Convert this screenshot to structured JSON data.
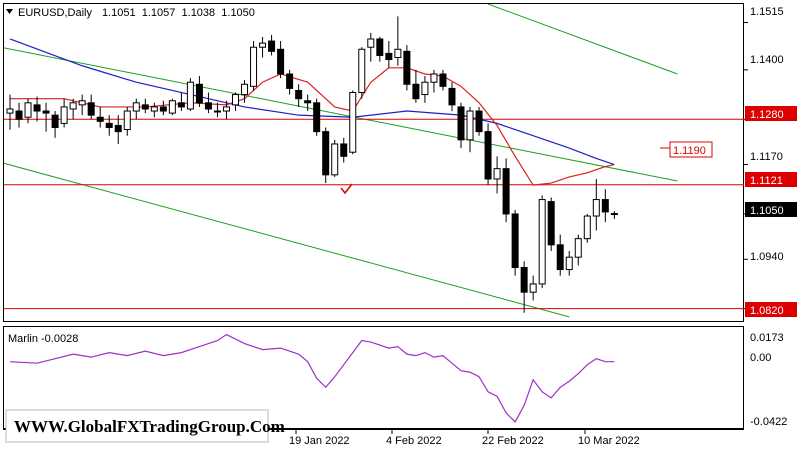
{
  "header": {
    "symbol": "EURUSD,Daily",
    "ohlc": "1.1051  1.1057  1.1038  1.1050",
    "menu_icon": "triangle-down-icon"
  },
  "indicator": {
    "label": "Marlin -0.0028",
    "ticks": [
      "0.0173",
      "0.00",
      "-0.0422"
    ]
  },
  "watermark": "WWW.GlobalFXTradingGroup.Com",
  "x_axis": {
    "ticks": [
      "19 Jan 2022",
      "4 Feb 2022",
      "22 Feb 2022",
      "10 Mar 2022"
    ]
  },
  "y_axis": {
    "ticks": [
      "1.1515",
      "1.1400",
      "1.1280",
      "1.1170",
      "1.1050",
      "1.0940",
      "1.0820"
    ]
  },
  "level_labels": {
    "level_1280": "1.1280",
    "level_1121": "1.1121",
    "level_1190": "1.1190",
    "level_0820": "1.0820",
    "current": "1.1050"
  },
  "colors": {
    "background": "#ffffff",
    "up_candle": "#ffffff",
    "down_candle": "#000000",
    "ma_fast": "#dc1e1e",
    "ma_slow": "#1e1ec8",
    "channel": "#1e9e1e",
    "levels": "#dc0000",
    "oscillator": "#9b30c8"
  },
  "chart_data": {
    "type": "candlestick",
    "symbol": "EURUSD",
    "timeframe": "Daily",
    "ylim": [
      1.079,
      1.156
    ],
    "last_ohlc": {
      "open": 1.1051,
      "high": 1.1057,
      "low": 1.1038,
      "close": 1.105
    },
    "candles": [
      [
        1.1295,
        1.134,
        1.1255,
        1.1305
      ],
      [
        1.13,
        1.132,
        1.126,
        1.128
      ],
      [
        1.1285,
        1.133,
        1.127,
        1.132
      ],
      [
        1.1315,
        1.1335,
        1.1275,
        1.13
      ],
      [
        1.13,
        1.132,
        1.125,
        1.1295
      ],
      [
        1.129,
        1.13,
        1.1235,
        1.126
      ],
      [
        1.127,
        1.133,
        1.126,
        1.131
      ],
      [
        1.1305,
        1.133,
        1.128,
        1.132
      ],
      [
        1.1315,
        1.134,
        1.129,
        1.1325
      ],
      [
        1.132,
        1.134,
        1.128,
        1.129
      ],
      [
        1.1285,
        1.131,
        1.126,
        1.1275
      ],
      [
        1.127,
        1.129,
        1.124,
        1.126
      ],
      [
        1.1265,
        1.129,
        1.122,
        1.125
      ],
      [
        1.1255,
        1.131,
        1.124,
        1.13
      ],
      [
        1.13,
        1.133,
        1.128,
        1.132
      ],
      [
        1.1315,
        1.133,
        1.1295,
        1.1305
      ],
      [
        1.13,
        1.132,
        1.1285,
        1.131
      ],
      [
        1.131,
        1.1325,
        1.129,
        1.13
      ],
      [
        1.1295,
        1.133,
        1.129,
        1.1325
      ],
      [
        1.132,
        1.1345,
        1.13,
        1.131
      ],
      [
        1.1305,
        1.138,
        1.13,
        1.137
      ],
      [
        1.1365,
        1.1385,
        1.131,
        1.132
      ],
      [
        1.132,
        1.1345,
        1.1295,
        1.1305
      ],
      [
        1.13,
        1.132,
        1.1285,
        1.13
      ],
      [
        1.13,
        1.1325,
        1.128,
        1.131
      ],
      [
        1.1315,
        1.1345,
        1.13,
        1.134
      ],
      [
        1.134,
        1.1375,
        1.132,
        1.1365
      ],
      [
        1.136,
        1.147,
        1.135,
        1.1455
      ],
      [
        1.1455,
        1.148,
        1.143,
        1.1465
      ],
      [
        1.147,
        1.1485,
        1.1435,
        1.1445
      ],
      [
        1.145,
        1.147,
        1.138,
        1.139
      ],
      [
        1.139,
        1.14,
        1.134,
        1.1355
      ],
      [
        1.135,
        1.1365,
        1.131,
        1.133
      ],
      [
        1.1325,
        1.134,
        1.13,
        1.132
      ],
      [
        1.132,
        1.133,
        1.124,
        1.125
      ],
      [
        1.125,
        1.126,
        1.1125,
        1.1145
      ],
      [
        1.1145,
        1.123,
        1.114,
        1.122
      ],
      [
        1.122,
        1.1235,
        1.1175,
        1.119
      ],
      [
        1.12,
        1.135,
        1.1195,
        1.1345
      ],
      [
        1.1345,
        1.1455,
        1.133,
        1.145
      ],
      [
        1.1455,
        1.149,
        1.142,
        1.1475
      ],
      [
        1.1475,
        1.148,
        1.142,
        1.1435
      ],
      [
        1.144,
        1.147,
        1.1405,
        1.1425
      ],
      [
        1.143,
        1.153,
        1.141,
        1.145
      ],
      [
        1.1445,
        1.146,
        1.135,
        1.1365
      ],
      [
        1.1365,
        1.14,
        1.132,
        1.133
      ],
      [
        1.134,
        1.1385,
        1.132,
        1.137
      ],
      [
        1.137,
        1.14,
        1.1345,
        1.139
      ],
      [
        1.139,
        1.14,
        1.135,
        1.136
      ],
      [
        1.1355,
        1.137,
        1.13,
        1.1315
      ],
      [
        1.131,
        1.132,
        1.121,
        1.123
      ],
      [
        1.123,
        1.131,
        1.12,
        1.13
      ],
      [
        1.13,
        1.131,
        1.124,
        1.125
      ],
      [
        1.125,
        1.127,
        1.112,
        1.1135
      ],
      [
        1.1135,
        1.119,
        1.11,
        1.116
      ],
      [
        1.116,
        1.1185,
        1.103,
        1.105
      ],
      [
        1.105,
        1.106,
        1.09,
        1.092
      ],
      [
        1.092,
        1.0935,
        1.081,
        1.086
      ],
      [
        1.086,
        1.09,
        1.084,
        1.088
      ],
      [
        1.088,
        1.1095,
        1.087,
        1.1085
      ],
      [
        1.108,
        1.109,
        1.096,
        1.0975
      ],
      [
        1.0975,
        1.1,
        1.09,
        1.0915
      ],
      [
        1.0915,
        1.096,
        1.09,
        1.0945
      ],
      [
        1.0945,
        1.1,
        1.0925,
        1.099
      ],
      [
        1.099,
        1.105,
        1.098,
        1.1045
      ],
      [
        1.1045,
        1.1135,
        1.101,
        1.1085
      ],
      [
        1.1085,
        1.111,
        1.103,
        1.1055
      ],
      [
        1.1051,
        1.1057,
        1.1038,
        1.105
      ]
    ],
    "ma_fast_points": [
      [
        0,
        1.133
      ],
      [
        6,
        1.133
      ],
      [
        10,
        1.131
      ],
      [
        15,
        1.131
      ],
      [
        20,
        1.132
      ],
      [
        24,
        1.1315
      ],
      [
        26,
        1.133
      ],
      [
        28,
        1.137
      ],
      [
        30,
        1.139
      ],
      [
        33,
        1.137
      ],
      [
        36,
        1.131
      ],
      [
        38,
        1.13
      ],
      [
        40,
        1.137
      ],
      [
        42,
        1.1405
      ],
      [
        44,
        1.1405
      ],
      [
        46,
        1.139
      ],
      [
        48,
        1.1385
      ],
      [
        50,
        1.136
      ],
      [
        52,
        1.132
      ],
      [
        54,
        1.1265
      ],
      [
        56,
        1.119
      ],
      [
        58,
        1.112
      ],
      [
        60,
        1.1125
      ],
      [
        62,
        1.114
      ],
      [
        64,
        1.115
      ],
      [
        66,
        1.1165
      ],
      [
        67,
        1.117
      ]
    ],
    "ma_slow_points": [
      [
        0,
        1.1475
      ],
      [
        8,
        1.141
      ],
      [
        14,
        1.137
      ],
      [
        20,
        1.134
      ],
      [
        26,
        1.131
      ],
      [
        32,
        1.129
      ],
      [
        38,
        1.1285
      ],
      [
        44,
        1.13
      ],
      [
        50,
        1.129
      ],
      [
        54,
        1.127
      ],
      [
        58,
        1.124
      ],
      [
        62,
        1.121
      ],
      [
        65,
        1.1185
      ],
      [
        67,
        1.117
      ]
    ],
    "channel_lines": [
      {
        "from": [
          -1,
          1.1455
        ],
        "to": [
          74,
          1.113
        ]
      },
      {
        "from": [
          -1,
          1.1175
        ],
        "to": [
          62,
          1.08
        ]
      },
      {
        "from": [
          53,
          1.156
        ],
        "to": [
          74,
          1.139
        ]
      }
    ],
    "horizontal_levels": [
      1.128,
      1.1121,
      1.082
    ],
    "marlin": {
      "ylim": [
        -0.046,
        0.021
      ],
      "points": [
        [
          0,
          -0.002
        ],
        [
          3,
          -0.003
        ],
        [
          5,
          0.0
        ],
        [
          7,
          0.003
        ],
        [
          9,
          0.001
        ],
        [
          11,
          0.004
        ],
        [
          13,
          0.002
        ],
        [
          15,
          0.005
        ],
        [
          17,
          0.002
        ],
        [
          19,
          0.004
        ],
        [
          21,
          0.008
        ],
        [
          23,
          0.012
        ],
        [
          24,
          0.016
        ],
        [
          25,
          0.013
        ],
        [
          26,
          0.01
        ],
        [
          28,
          0.006
        ],
        [
          30,
          0.007
        ],
        [
          32,
          0.003
        ],
        [
          33,
          -0.002
        ],
        [
          34,
          -0.013
        ],
        [
          35,
          -0.019
        ],
        [
          36,
          -0.012
        ],
        [
          37,
          -0.004
        ],
        [
          38,
          0.004
        ],
        [
          39,
          0.012
        ],
        [
          40,
          0.011
        ],
        [
          41,
          0.009
        ],
        [
          42,
          0.007
        ],
        [
          43,
          0.008
        ],
        [
          44,
          0.003
        ],
        [
          45,
          0.002
        ],
        [
          46,
          0.004
        ],
        [
          47,
          0.001
        ],
        [
          48,
          0.002
        ],
        [
          49,
          -0.003
        ],
        [
          50,
          -0.008
        ],
        [
          51,
          -0.009
        ],
        [
          52,
          -0.012
        ],
        [
          53,
          -0.022
        ],
        [
          54,
          -0.025
        ],
        [
          55,
          -0.036
        ],
        [
          56,
          -0.042
        ],
        [
          57,
          -0.031
        ],
        [
          58,
          -0.014
        ],
        [
          59,
          -0.022
        ],
        [
          60,
          -0.026
        ],
        [
          61,
          -0.019
        ],
        [
          62,
          -0.015
        ],
        [
          63,
          -0.01
        ],
        [
          64,
          -0.004
        ],
        [
          65,
          0.0
        ],
        [
          66,
          -0.002
        ],
        [
          67,
          -0.002
        ]
      ]
    }
  }
}
